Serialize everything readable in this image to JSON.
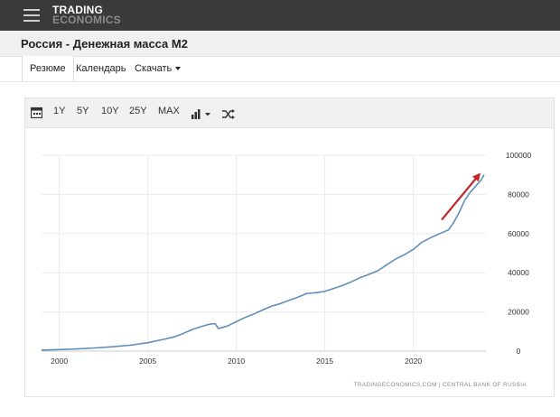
{
  "header": {
    "logo_line1": "TRADING",
    "logo_line2": "ECONOMICS"
  },
  "page": {
    "title": "Россия - Денежная масса M2"
  },
  "tabs": [
    {
      "label": "Резюме",
      "active": true
    },
    {
      "label": "Календарь",
      "active": false
    },
    {
      "label": "Скачать",
      "active": false
    }
  ],
  "toolbar": {
    "ranges": [
      "1Y",
      "5Y",
      "10Y",
      "25Y",
      "MAX"
    ],
    "icons": [
      "calendar-icon",
      "bar-chart-icon",
      "caret-down-icon",
      "shuffle-icon"
    ]
  },
  "colors": {
    "line": "#5f8fb8",
    "arrow": "#c0262a",
    "grid": "#ececec"
  },
  "chart_data": {
    "type": "line",
    "title": "",
    "xlabel": "",
    "ylabel": "",
    "x_ticks": [
      "2000",
      "2005",
      "2010",
      "2015",
      "2020"
    ],
    "y_ticks": [
      "0",
      "20000",
      "40000",
      "60000",
      "80000",
      "100000"
    ],
    "xlim": [
      1999,
      2024.1
    ],
    "ylim": [
      0,
      100000
    ],
    "series": [
      {
        "name": "",
        "x": [
          1999,
          2000,
          2001,
          2002,
          2003,
          2004,
          2005,
          2006,
          2006.5,
          2007,
          2007.5,
          2008,
          2008.5,
          2008.8,
          2009,
          2009.5,
          2010,
          2010.5,
          2011,
          2011.5,
          2012,
          2012.5,
          2013,
          2013.5,
          2014,
          2014.5,
          2015,
          2015.5,
          2016,
          2016.5,
          2017,
          2017.5,
          2018,
          2018.5,
          2019,
          2019.5,
          2020,
          2020.5,
          2021,
          2021.5,
          2022,
          2022.3,
          2022.6,
          2022.9,
          2023.2,
          2023.5,
          2023.8,
          2024.0
        ],
        "values": [
          500,
          800,
          1100,
          1600,
          2200,
          3000,
          4300,
          6200,
          7300,
          9000,
          11000,
          12500,
          13800,
          14000,
          11500,
          12800,
          15000,
          17200,
          19000,
          21000,
          23000,
          24300,
          26000,
          27600,
          29500,
          29800,
          30500,
          32000,
          33500,
          35400,
          37500,
          39200,
          41000,
          44100,
          47000,
          49200,
          52000,
          55600,
          58000,
          60000,
          62000,
          66000,
          71000,
          77000,
          81000,
          84000,
          87000,
          90000
        ]
      }
    ],
    "source": "TRADINGECONOMICS.COM  |  CENTRAL BANK OF RUSSIA",
    "annotation": "red-up-arrow",
    "grid": true,
    "y_axis_position": "right"
  }
}
